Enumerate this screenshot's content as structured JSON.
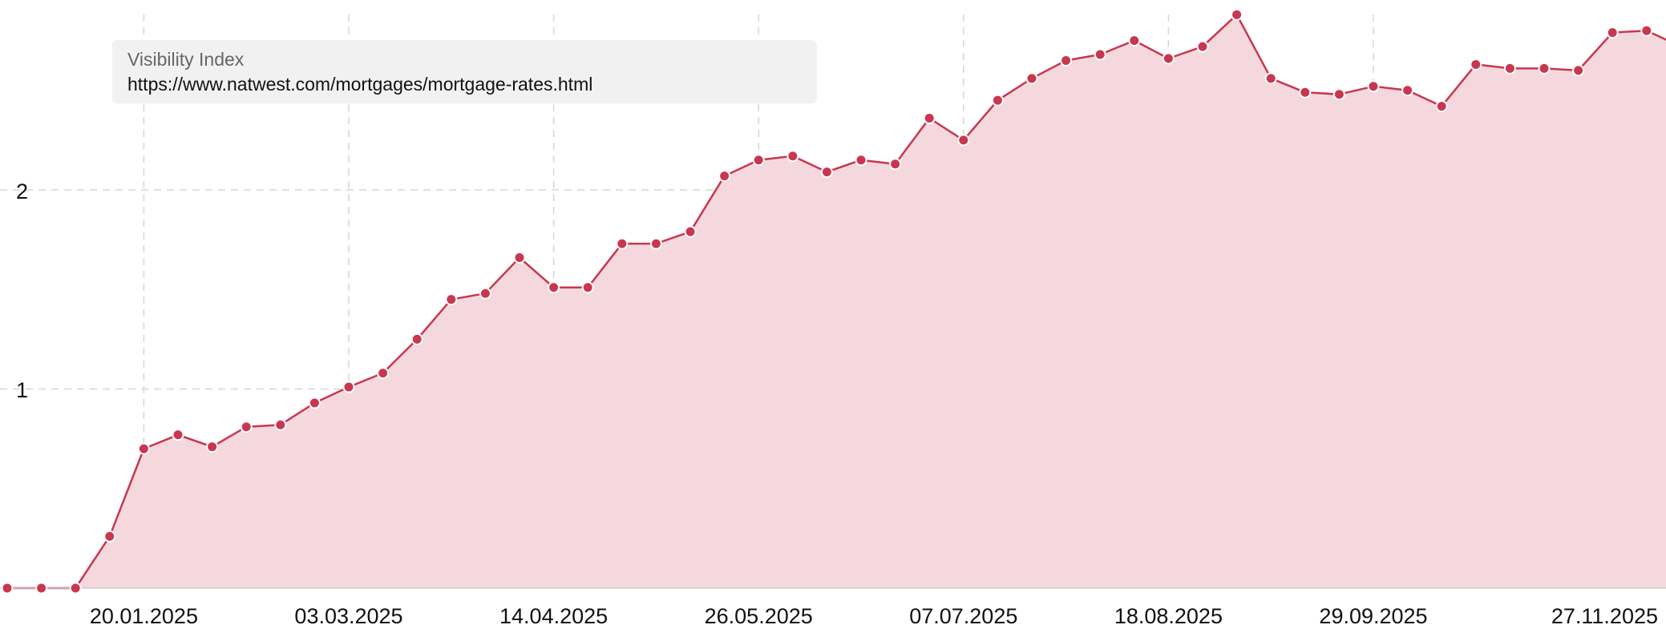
{
  "legend": {
    "title": "Visibility Index",
    "url": "https://www.natwest.com/mortgages/mortgage-rates.html"
  },
  "colors": {
    "line": "#c8374f",
    "area": "#f4d8de",
    "grid": "#d6d6d6",
    "legend_bg": "#f1f1f1"
  },
  "chart_data": {
    "type": "area",
    "title": "",
    "xlabel": "",
    "ylabel": "",
    "x_tick_labels": [
      "20.01.2025",
      "03.03.2025",
      "14.04.2025",
      "26.05.2025",
      "07.07.2025",
      "18.08.2025",
      "29.09.2025",
      "27.11.2025"
    ],
    "y_tick_labels": [
      "1",
      "2"
    ],
    "ylim": [
      0,
      2.95
    ],
    "grid": true,
    "legend_position": "top-left",
    "series": [
      {
        "values": [
          0,
          0,
          0,
          0.26,
          0.7,
          0.77,
          0.71,
          0.81,
          0.82,
          0.93,
          1.01,
          1.08,
          1.25,
          1.45,
          1.48,
          1.66,
          1.51,
          1.51,
          1.73,
          1.73,
          1.79,
          2.07,
          2.15,
          2.17,
          2.09,
          2.15,
          2.13,
          2.36,
          2.25,
          2.45,
          2.56,
          2.65,
          2.68,
          2.75,
          2.66,
          2.72,
          2.88,
          2.56,
          2.49,
          2.48,
          2.52,
          2.5,
          2.42,
          2.63,
          2.61,
          2.61,
          2.6,
          2.79,
          2.8,
          2.72
        ]
      }
    ]
  }
}
